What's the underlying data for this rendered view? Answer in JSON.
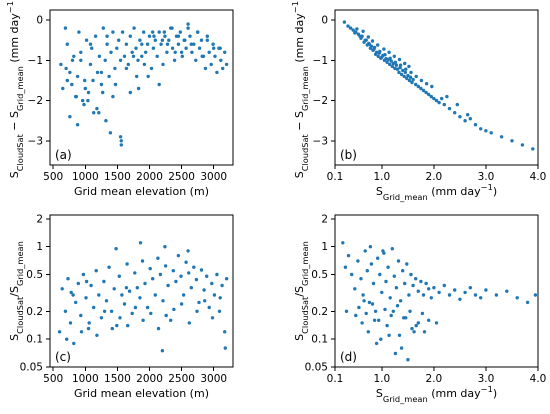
{
  "marker_color": "#1f77b4",
  "chart_data": [
    {
      "panel_label": "(a)",
      "type": "scatter",
      "xlabel": "Grid mean elevation (m)",
      "ylabel_parts": [
        [
          "S",
          ""
        ],
        [
          "CloudSat",
          "sub"
        ],
        [
          " − S",
          ""
        ],
        [
          "Grid_mean",
          "sub"
        ],
        [
          " (mm day",
          ""
        ],
        [
          "−1",
          "sup"
        ],
        [
          ")",
          ""
        ]
      ],
      "xscale": "linear",
      "yscale": "linear",
      "xlim": [
        450,
        3300
      ],
      "ylim": [
        -3.6,
        0.25
      ],
      "xticks": [
        500,
        1000,
        1500,
        2000,
        2500,
        3000
      ],
      "xtick_labels": [
        "500",
        "1000",
        "1500",
        "2000",
        "2500",
        "3000"
      ],
      "yticks": [
        0,
        -1,
        -2,
        -3
      ],
      "ytick_labels": [
        "0",
        "−1",
        "−2",
        "−3"
      ],
      "x": [
        620,
        650,
        700,
        720,
        760,
        790,
        820,
        850,
        880,
        900,
        930,
        960,
        990,
        1020,
        1050,
        1080,
        1100,
        1130,
        1160,
        1190,
        1220,
        1250,
        1280,
        1310,
        1340,
        1370,
        1400,
        1430,
        1460,
        1490,
        1520,
        1550,
        1580,
        1610,
        1640,
        1670,
        1700,
        1730,
        1760,
        1790,
        1820,
        1850,
        1880,
        1910,
        1940,
        1970,
        2000,
        2030,
        2060,
        2090,
        2120,
        2150,
        2180,
        2210,
        2240,
        2270,
        2300,
        2330,
        2360,
        2390,
        2420,
        2450,
        2480,
        2510,
        2540,
        2570,
        2600,
        2630,
        2660,
        2690,
        2720,
        2750,
        2780,
        2810,
        2840,
        2870,
        2900,
        2930,
        2960,
        2990,
        3020,
        3050,
        3080,
        3110,
        3140,
        3170,
        3200,
        760,
        880,
        1040,
        1210,
        1390,
        1550,
        1560,
        1320,
        1180,
        1430,
        980,
        1120,
        1270,
        2050,
        2200,
        2350,
        2600,
        2280,
        2450,
        1800,
        1920,
        2750,
        2900,
        3100,
        1700,
        1470,
        1250,
        1000,
        860,
        720,
        690,
        1560,
        1980,
        2150,
        2500,
        2650,
        2820,
        3000,
        1830,
        1640,
        1340,
        1080,
        930,
        800,
        2400,
        2550,
        2230,
        2070,
        1880,
        1750
      ],
      "y": [
        -1.1,
        -1.7,
        -1.2,
        -0.6,
        -1.3,
        -1.6,
        -0.9,
        -1.9,
        -1.4,
        -0.3,
        -1.0,
        -2.0,
        -1.5,
        -0.5,
        -1.8,
        -1.1,
        -0.7,
        -2.3,
        -0.4,
        -1.3,
        -0.9,
        -1.6,
        -0.2,
        -1.0,
        -0.6,
        -1.4,
        -0.8,
        -0.3,
        -1.2,
        -0.7,
        -0.5,
        -1.0,
        -0.3,
        -0.9,
        -0.6,
        -1.1,
        -0.4,
        -0.8,
        -0.2,
        -0.7,
        -1.0,
        -0.5,
        -0.9,
        -0.3,
        -0.8,
        -0.6,
        -0.4,
        -1.2,
        -0.7,
        -0.5,
        -0.9,
        -0.3,
        -0.6,
        -1.1,
        -0.4,
        -0.8,
        -0.5,
        -0.2,
        -0.7,
        -1.0,
        -0.4,
        -0.6,
        -0.3,
        -0.9,
        -0.5,
        -0.7,
        -0.2,
        -0.4,
        -0.8,
        -0.6,
        -1.0,
        -0.3,
        -0.7,
        -0.5,
        -0.9,
        -1.2,
        -0.4,
        -0.8,
        -1.1,
        -0.6,
        -0.9,
        -1.3,
        -0.7,
        -1.0,
        -1.2,
        -0.8,
        -1.1,
        -2.4,
        -2.6,
        -2.0,
        -2.3,
        -2.8,
        -2.9,
        -3.1,
        -2.5,
        -2.2,
        -1.9,
        -2.1,
        -1.5,
        -1.8,
        -0.3,
        -0.5,
        -0.2,
        -0.1,
        -0.6,
        -0.4,
        -1.4,
        -1.1,
        -0.3,
        -0.5,
        -0.7,
        -1.8,
        -1.6,
        -1.3,
        -1.7,
        -1.9,
        -1.5,
        -0.2,
        -3.0,
        -1.4,
        -1.6,
        -0.8,
        -0.6,
        -0.9,
        -0.7,
        -1.7,
        -1.2,
        -0.4,
        -0.6,
        -0.8,
        -1.0,
        -0.8,
        -0.5,
        -0.3,
        -0.4,
        -0.6,
        -0.9
      ]
    },
    {
      "panel_label": "(b)",
      "type": "scatter",
      "xlabel_parts": [
        [
          "S",
          ""
        ],
        [
          "Grid_mean",
          "sub"
        ],
        [
          " (mm day",
          ""
        ],
        [
          "−1",
          "sup"
        ],
        [
          ")",
          ""
        ]
      ],
      "ylabel_parts": [
        [
          "S",
          ""
        ],
        [
          "CloudSat",
          "sub"
        ],
        [
          " − S",
          ""
        ],
        [
          "Grid_mean",
          "sub"
        ],
        [
          " (mm day",
          ""
        ],
        [
          "−1",
          "sup"
        ],
        [
          ")",
          ""
        ]
      ],
      "xscale": "linear",
      "yscale": "linear",
      "xlim": [
        0.1,
        4.0
      ],
      "ylim": [
        -3.6,
        0.25
      ],
      "xticks": [
        0.1,
        1.0,
        2.0,
        3.0,
        4.0
      ],
      "xtick_labels": [
        "0.1",
        "1.0",
        "2.0",
        "3.0",
        "4.0"
      ],
      "yticks": [
        0,
        -1,
        -2,
        -3
      ],
      "ytick_labels": [
        "0",
        "−1",
        "−2",
        "−3"
      ],
      "x": [
        0.28,
        0.35,
        0.4,
        0.45,
        0.5,
        0.55,
        0.6,
        0.62,
        0.66,
        0.7,
        0.72,
        0.75,
        0.78,
        0.8,
        0.83,
        0.85,
        0.88,
        0.9,
        0.93,
        0.95,
        0.98,
        1.0,
        1.02,
        1.05,
        1.08,
        1.1,
        1.12,
        1.15,
        1.18,
        1.2,
        1.22,
        1.25,
        1.28,
        1.3,
        1.33,
        1.35,
        1.38,
        1.4,
        1.43,
        1.45,
        1.48,
        1.5,
        1.53,
        1.55,
        1.58,
        1.6,
        1.65,
        1.7,
        1.75,
        1.8,
        1.85,
        1.9,
        1.95,
        2.0,
        2.05,
        2.1,
        2.15,
        2.2,
        2.3,
        2.4,
        2.5,
        2.6,
        2.7,
        2.8,
        2.9,
        3.0,
        3.1,
        3.3,
        3.5,
        3.7,
        3.9,
        0.48,
        0.58,
        0.68,
        0.76,
        0.86,
        0.96,
        1.06,
        1.16,
        1.26,
        1.36,
        1.46,
        1.56,
        1.66,
        1.76,
        1.86,
        1.96,
        2.25,
        2.45,
        2.65,
        0.52,
        0.64,
        0.74,
        0.82,
        0.92,
        1.04,
        1.14,
        1.24,
        1.34,
        1.44,
        1.52
      ],
      "y": [
        -0.05,
        -0.15,
        -0.2,
        -0.25,
        -0.3,
        -0.35,
        -0.45,
        -0.4,
        -0.55,
        -0.5,
        -0.62,
        -0.58,
        -0.7,
        -0.65,
        -0.75,
        -0.72,
        -0.85,
        -0.8,
        -0.9,
        -0.82,
        -0.95,
        -0.92,
        -0.88,
        -1.0,
        -0.96,
        -1.05,
        -0.98,
        -1.1,
        -1.02,
        -1.15,
        -1.08,
        -1.2,
        -1.12,
        -1.22,
        -1.3,
        -1.18,
        -1.35,
        -1.25,
        -1.4,
        -1.3,
        -1.45,
        -1.38,
        -1.5,
        -1.42,
        -1.55,
        -1.48,
        -1.6,
        -1.65,
        -1.7,
        -1.75,
        -1.8,
        -1.85,
        -1.9,
        -1.95,
        -2.0,
        -2.05,
        -1.95,
        -2.1,
        -2.2,
        -2.3,
        -2.4,
        -2.5,
        -2.45,
        -2.6,
        -2.7,
        -2.75,
        -2.8,
        -2.9,
        -3.0,
        -3.1,
        -3.2,
        -0.32,
        -0.4,
        -0.5,
        -0.6,
        -0.68,
        -0.78,
        -0.86,
        -0.95,
        -1.05,
        -1.12,
        -1.22,
        -1.3,
        -1.4,
        -1.5,
        -1.58,
        -1.65,
        -1.9,
        -2.1,
        -2.35,
        -0.22,
        -0.28,
        -0.42,
        -0.52,
        -0.62,
        -0.72,
        -0.8,
        -0.9,
        -0.98,
        -1.08,
        -1.15
      ]
    },
    {
      "panel_label": "(c)",
      "type": "scatter",
      "xlabel": "Grid mean elevation (m)",
      "ylabel_parts": [
        [
          "S",
          ""
        ],
        [
          "CloudSat",
          "sub"
        ],
        [
          "/S",
          ""
        ],
        [
          "Grid_mean",
          "sub"
        ]
      ],
      "xscale": "linear",
      "yscale": "log",
      "xlim": [
        450,
        3300
      ],
      "ylim": [
        0.05,
        2.2
      ],
      "xticks": [
        500,
        1000,
        1500,
        2000,
        2500,
        3000
      ],
      "xtick_labels": [
        "500",
        "1000",
        "1500",
        "2000",
        "2500",
        "3000"
      ],
      "yticks": [
        0.05,
        0.1,
        0.2,
        0.5,
        1,
        2
      ],
      "ytick_labels": [
        "0.05",
        "0.1",
        "0.2",
        "0.5",
        "1",
        "2"
      ],
      "x": [
        600,
        640,
        690,
        730,
        770,
        810,
        850,
        890,
        930,
        970,
        1010,
        1050,
        1090,
        1130,
        1170,
        1210,
        1250,
        1290,
        1330,
        1370,
        1410,
        1450,
        1490,
        1530,
        1570,
        1610,
        1650,
        1690,
        1730,
        1770,
        1810,
        1850,
        1890,
        1930,
        1970,
        2010,
        2050,
        2090,
        2130,
        2170,
        2210,
        2250,
        2290,
        2330,
        2370,
        2410,
        2450,
        2490,
        2530,
        2570,
        2610,
        2650,
        2690,
        2730,
        2770,
        2810,
        2850,
        2890,
        2930,
        2970,
        3010,
        3050,
        3090,
        3130,
        3170,
        3200,
        710,
        820,
        940,
        1060,
        1180,
        1300,
        1420,
        1540,
        1660,
        1780,
        1900,
        2020,
        2140,
        2260,
        2380,
        2500,
        2620,
        2740,
        2860,
        2980,
        3100,
        1860,
        2240,
        2200,
        3180,
        2600,
        1480,
        1020,
        780,
        1640
      ],
      "y": [
        0.12,
        0.35,
        0.2,
        0.45,
        0.15,
        0.3,
        0.25,
        0.4,
        0.18,
        0.5,
        0.28,
        0.13,
        0.38,
        0.22,
        0.55,
        0.3,
        0.17,
        0.42,
        0.26,
        0.6,
        0.2,
        0.35,
        0.14,
        0.48,
        0.3,
        0.24,
        0.65,
        0.33,
        0.19,
        0.52,
        0.36,
        0.28,
        0.7,
        0.4,
        0.22,
        0.58,
        0.45,
        0.3,
        0.75,
        0.5,
        0.26,
        0.62,
        0.38,
        0.16,
        0.55,
        0.42,
        0.8,
        0.48,
        0.3,
        0.68,
        0.52,
        0.36,
        0.6,
        0.44,
        0.25,
        0.56,
        0.34,
        0.48,
        0.22,
        0.4,
        0.3,
        0.5,
        0.2,
        0.38,
        0.12,
        0.45,
        0.1,
        0.09,
        0.12,
        0.15,
        0.11,
        0.2,
        0.13,
        0.17,
        0.14,
        0.22,
        0.16,
        0.19,
        0.13,
        0.18,
        0.21,
        0.24,
        0.15,
        0.2,
        0.26,
        0.17,
        0.28,
        1.1,
        1.0,
        0.075,
        0.08,
        0.9,
        0.95,
        0.42,
        0.32,
        0.36
      ]
    },
    {
      "panel_label": "(d)",
      "type": "scatter",
      "xlabel_parts": [
        [
          "S",
          ""
        ],
        [
          "Grid_mean",
          "sub"
        ],
        [
          " (mm day",
          ""
        ],
        [
          "−1",
          "sup"
        ],
        [
          ")",
          ""
        ]
      ],
      "ylabel_parts": [
        [
          "S",
          ""
        ],
        [
          "CloudSat",
          "sub"
        ],
        [
          "/S",
          ""
        ],
        [
          "Grid_mean",
          "sub"
        ]
      ],
      "xscale": "linear",
      "yscale": "log",
      "xlim": [
        0.1,
        4.0
      ],
      "ylim": [
        0.05,
        2.2
      ],
      "xticks": [
        0.1,
        1.0,
        2.0,
        3.0,
        4.0
      ],
      "xtick_labels": [
        "0.1",
        "1.0",
        "2.0",
        "3.0",
        "4.0"
      ],
      "yticks": [
        0.05,
        0.1,
        0.2,
        0.5,
        1,
        2
      ],
      "ytick_labels": [
        "0.05",
        "0.1",
        "0.2",
        "0.5",
        "1",
        "2"
      ],
      "x": [
        0.25,
        0.3,
        0.36,
        0.42,
        0.48,
        0.54,
        0.6,
        0.64,
        0.68,
        0.72,
        0.76,
        0.8,
        0.84,
        0.88,
        0.92,
        0.96,
        1.0,
        1.04,
        1.08,
        1.12,
        1.16,
        1.2,
        1.24,
        1.28,
        1.32,
        1.36,
        1.4,
        1.44,
        1.48,
        1.52,
        1.56,
        1.6,
        1.65,
        1.7,
        1.75,
        1.8,
        1.85,
        1.9,
        1.95,
        2.0,
        2.1,
        2.2,
        2.3,
        2.4,
        2.5,
        2.6,
        2.7,
        2.8,
        2.9,
        3.0,
        3.2,
        3.4,
        3.6,
        3.8,
        3.95,
        0.5,
        0.62,
        0.74,
        0.86,
        0.98,
        1.1,
        1.22,
        1.34,
        1.46,
        1.58,
        1.7,
        1.82,
        0.56,
        0.7,
        0.82,
        0.94,
        1.06,
        1.18,
        1.3,
        1.42,
        1.54,
        1.66,
        1.78,
        1.9,
        0.66,
        0.9,
        1.14,
        1.38,
        1.62,
        0.78,
        1.02,
        1.26,
        1.5,
        0.32,
        2.05
      ],
      "y": [
        1.1,
        0.6,
        0.8,
        0.5,
        0.35,
        0.7,
        0.45,
        0.3,
        0.9,
        0.55,
        0.25,
        0.65,
        0.4,
        0.2,
        0.75,
        0.5,
        0.32,
        0.85,
        0.42,
        0.6,
        0.28,
        0.95,
        0.48,
        0.36,
        0.7,
        0.26,
        0.55,
        0.4,
        0.65,
        0.3,
        0.5,
        0.38,
        0.45,
        0.33,
        0.42,
        0.3,
        0.4,
        0.35,
        0.28,
        0.36,
        0.32,
        0.38,
        0.3,
        0.34,
        0.27,
        0.32,
        0.36,
        0.3,
        0.28,
        0.34,
        0.3,
        0.33,
        0.28,
        0.25,
        0.3,
        0.18,
        0.15,
        0.12,
        0.16,
        0.1,
        0.14,
        0.2,
        0.11,
        0.17,
        0.13,
        0.15,
        0.12,
        0.22,
        0.19,
        0.24,
        0.16,
        0.21,
        0.18,
        0.23,
        0.17,
        0.2,
        0.14,
        0.19,
        0.16,
        0.26,
        0.09,
        0.11,
        0.08,
        0.12,
        1.0,
        0.9,
        0.07,
        0.06,
        0.2,
        0.15
      ]
    }
  ]
}
